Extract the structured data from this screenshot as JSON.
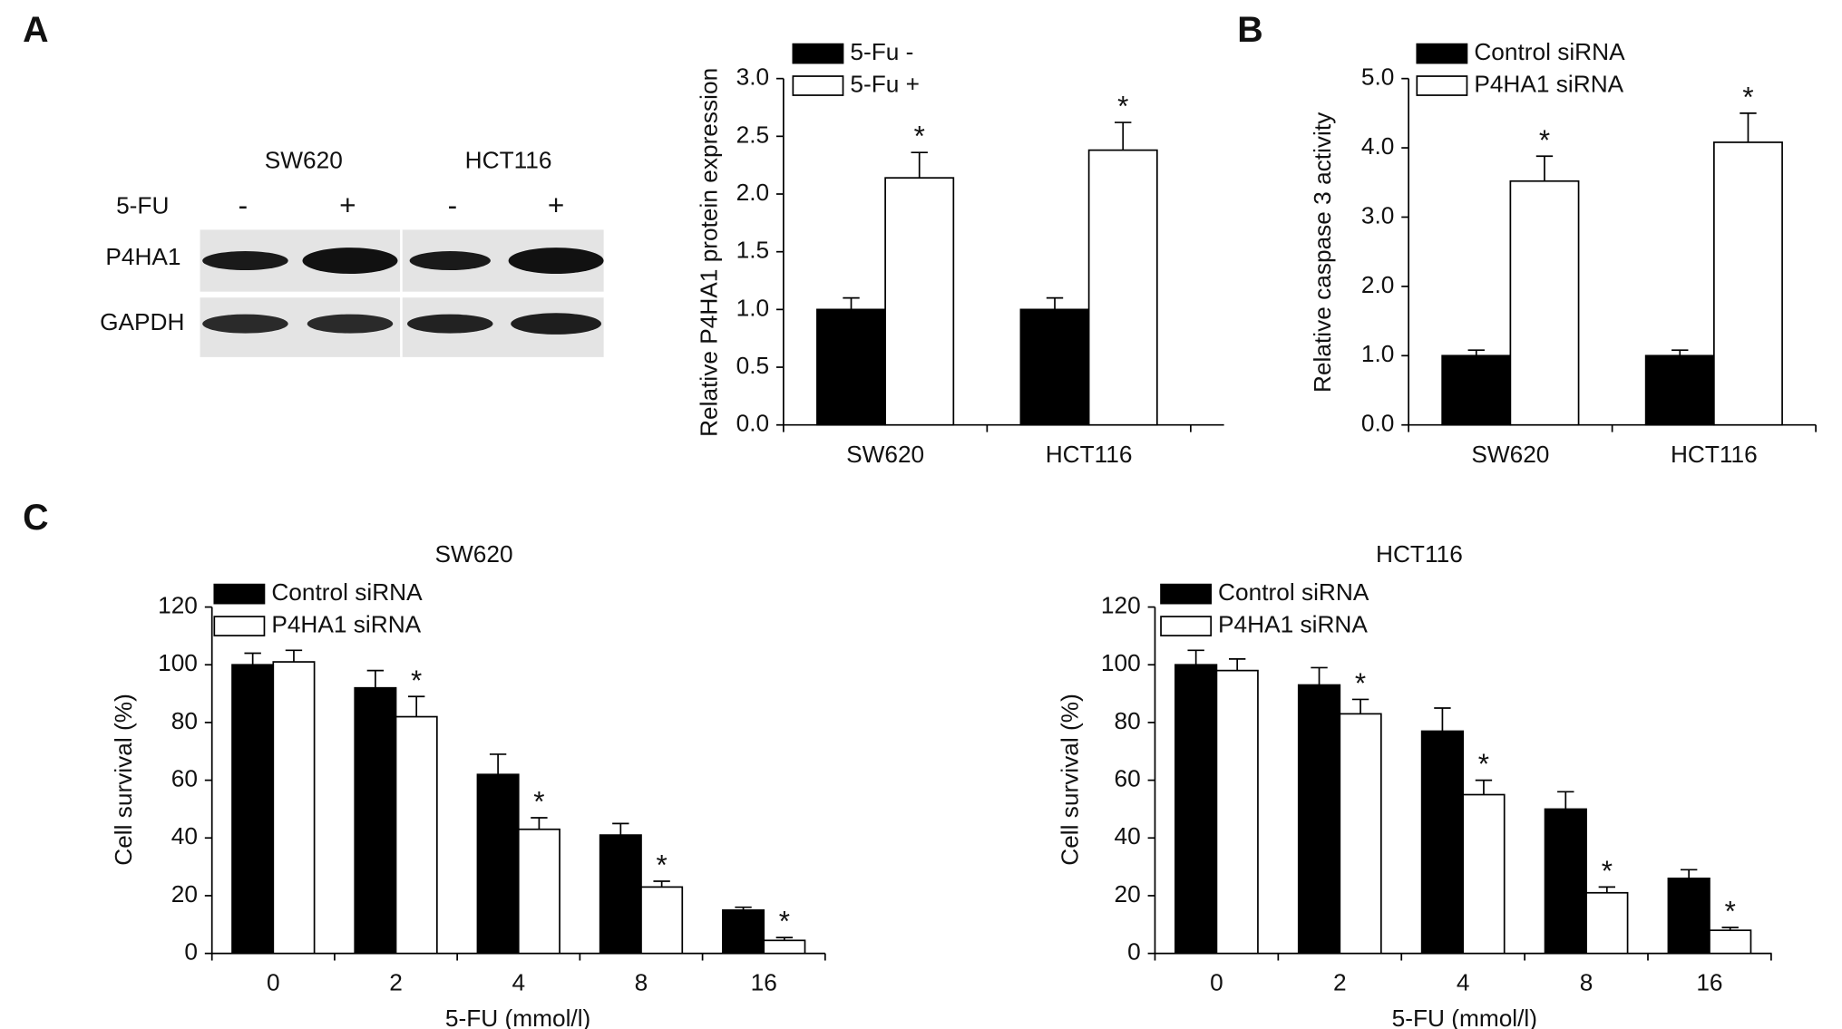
{
  "figure": {
    "panel_labels": [
      "A",
      "B",
      "C"
    ],
    "blot": {
      "cell_lines": [
        "SW620",
        "HCT116"
      ],
      "treatment_label": "5-FU",
      "treatment_signs": [
        "-",
        "+",
        "-",
        "+"
      ],
      "rows": [
        "P4HA1",
        "GAPDH"
      ]
    }
  },
  "chart_data": [
    {
      "type": "bar",
      "ylabel": "Relative P4HA1 protein expression",
      "categories": [
        "SW620",
        "HCT116"
      ],
      "series": [
        {
          "name": "5-Fu -",
          "color": "#000000",
          "values": [
            1.0,
            1.0
          ],
          "errors": [
            0.1,
            0.1
          ],
          "significance": [
            null,
            null
          ]
        },
        {
          "name": "5-Fu +",
          "color": "#ffffff",
          "values": [
            2.14,
            2.38
          ],
          "errors": [
            0.22,
            0.24
          ],
          "significance": [
            "*",
            "*"
          ]
        }
      ],
      "ylim": [
        0,
        3
      ],
      "yticks": [
        {
          "value": 0,
          "label": "0.0"
        },
        {
          "value": 0.5,
          "label": "0.5"
        },
        {
          "value": 1,
          "label": "1.0"
        },
        {
          "value": 1.5,
          "label": "1.5"
        },
        {
          "value": 2,
          "label": "2.0"
        },
        {
          "value": 2.5,
          "label": "2.5"
        },
        {
          "value": 3,
          "label": "3.0"
        }
      ]
    },
    {
      "type": "bar",
      "ylabel": "Relative caspase 3 activity",
      "categories": [
        "SW620",
        "HCT116"
      ],
      "series": [
        {
          "name": "Control siRNA",
          "color": "#000000",
          "values": [
            1.0,
            1.0
          ],
          "errors": [
            0.08,
            0.08
          ],
          "significance": [
            null,
            null
          ]
        },
        {
          "name": "P4HA1 siRNA",
          "color": "#ffffff",
          "values": [
            3.52,
            4.08
          ],
          "errors": [
            0.36,
            0.42
          ],
          "significance": [
            "*",
            "*"
          ]
        }
      ],
      "ylim": [
        0,
        5
      ],
      "yticks": [
        {
          "value": 0,
          "label": "0.0"
        },
        {
          "value": 1,
          "label": "1.0"
        },
        {
          "value": 2,
          "label": "2.0"
        },
        {
          "value": 3,
          "label": "3.0"
        },
        {
          "value": 4,
          "label": "4.0"
        },
        {
          "value": 5,
          "label": "5.0"
        }
      ]
    },
    {
      "type": "bar",
      "title": "SW620",
      "xlabel": "5-FU (mmol/l)",
      "ylabel": "Cell survival (%)",
      "categories": [
        "0",
        "2",
        "4",
        "8",
        "16"
      ],
      "series": [
        {
          "name": "Control siRNA",
          "color": "#000000",
          "values": [
            100,
            92,
            62,
            41,
            15
          ],
          "errors": [
            4,
            6,
            7,
            4,
            1
          ],
          "significance": [
            null,
            null,
            null,
            null,
            null
          ]
        },
        {
          "name": "P4HA1 siRNA",
          "color": "#ffffff",
          "values": [
            101,
            82,
            43,
            23,
            4.5
          ],
          "errors": [
            4,
            7,
            4,
            2,
            1
          ],
          "significance": [
            null,
            "*",
            "*",
            "*",
            "*"
          ]
        }
      ],
      "ylim": [
        0,
        120
      ],
      "yticks": [
        0,
        20,
        40,
        60,
        80,
        100,
        120
      ]
    },
    {
      "type": "bar",
      "title": "HCT116",
      "xlabel": "5-FU (mmol/l)",
      "ylabel": "Cell survival (%)",
      "categories": [
        "0",
        "2",
        "4",
        "8",
        "16"
      ],
      "series": [
        {
          "name": "Control siRNA",
          "color": "#000000",
          "values": [
            100,
            93,
            77,
            50,
            26
          ],
          "errors": [
            5,
            6,
            8,
            6,
            3
          ],
          "significance": [
            null,
            null,
            null,
            null,
            null
          ]
        },
        {
          "name": "P4HA1 siRNA",
          "color": "#ffffff",
          "values": [
            98,
            83,
            55,
            21,
            8
          ],
          "errors": [
            4,
            5,
            5,
            2,
            1
          ],
          "significance": [
            null,
            "*",
            "*",
            "*",
            "*"
          ]
        }
      ],
      "ylim": [
        0,
        120
      ],
      "yticks": [
        0,
        20,
        40,
        60,
        80,
        100,
        120
      ]
    }
  ]
}
